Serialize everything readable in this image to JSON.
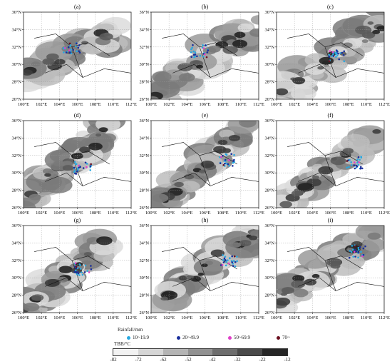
{
  "panels": [
    {
      "label": "(a)"
    },
    {
      "label": "(b)"
    },
    {
      "label": "(c)"
    },
    {
      "label": "(d)"
    },
    {
      "label": "(e)"
    },
    {
      "label": "(f)"
    },
    {
      "label": "(g)"
    },
    {
      "label": "(h)"
    },
    {
      "label": "(i)"
    }
  ],
  "axes": {
    "lon_ticks": [
      "100°E",
      "102°E",
      "104°E",
      "106°E",
      "108°E",
      "110°E",
      "112°E"
    ],
    "lat_ticks": [
      "36°N",
      "34°N",
      "32°N",
      "30°N",
      "28°N",
      "26°N"
    ]
  },
  "legend": {
    "rainfall_title": "Rainfall/mm",
    "rainfall_classes": [
      {
        "label": "10~19.9",
        "color": "#29a8e0"
      },
      {
        "label": "20~49.9",
        "color": "#1a2f9c"
      },
      {
        "label": "50~69.9",
        "color": "#e040c8"
      },
      {
        "label": "70~",
        "color": "#6b1020"
      }
    ],
    "tbb_title": "TBB/°C",
    "tbb_ticks": [
      "-82",
      "-72",
      "-62",
      "-52",
      "-42",
      "-32",
      "-22",
      "-12"
    ],
    "tbb_colors": [
      "#f2f2f2",
      "#d6d6d6",
      "#b4b4b4",
      "#919191",
      "#6d6d6d",
      "#4a4a4a",
      "#262626"
    ]
  }
}
